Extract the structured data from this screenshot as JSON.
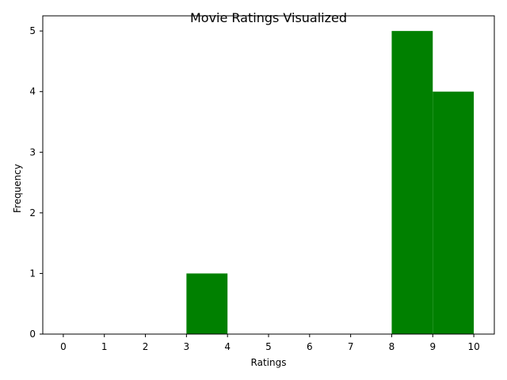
{
  "chart_data": {
    "type": "bar",
    "title": "Movie Ratings Visualized",
    "xlabel": "Ratings",
    "ylabel": "Frequency",
    "xlim": [
      -0.5,
      10.5
    ],
    "ylim": [
      0,
      5.25
    ],
    "x_ticks": [
      "0",
      "1",
      "2",
      "3",
      "4",
      "5",
      "6",
      "7",
      "8",
      "9",
      "10"
    ],
    "y_ticks": [
      "0",
      "1",
      "2",
      "3",
      "4",
      "5"
    ],
    "bins": [
      {
        "start": 0,
        "end": 1,
        "value": 0
      },
      {
        "start": 1,
        "end": 2,
        "value": 0
      },
      {
        "start": 2,
        "end": 3,
        "value": 0
      },
      {
        "start": 3,
        "end": 4,
        "value": 1
      },
      {
        "start": 4,
        "end": 5,
        "value": 0
      },
      {
        "start": 5,
        "end": 6,
        "value": 0
      },
      {
        "start": 6,
        "end": 7,
        "value": 0
      },
      {
        "start": 7,
        "end": 8,
        "value": 0
      },
      {
        "start": 8,
        "end": 9,
        "value": 5
      },
      {
        "start": 9,
        "end": 10,
        "value": 4
      }
    ],
    "bar_color": "#008000",
    "grid": false,
    "legend": "none"
  }
}
